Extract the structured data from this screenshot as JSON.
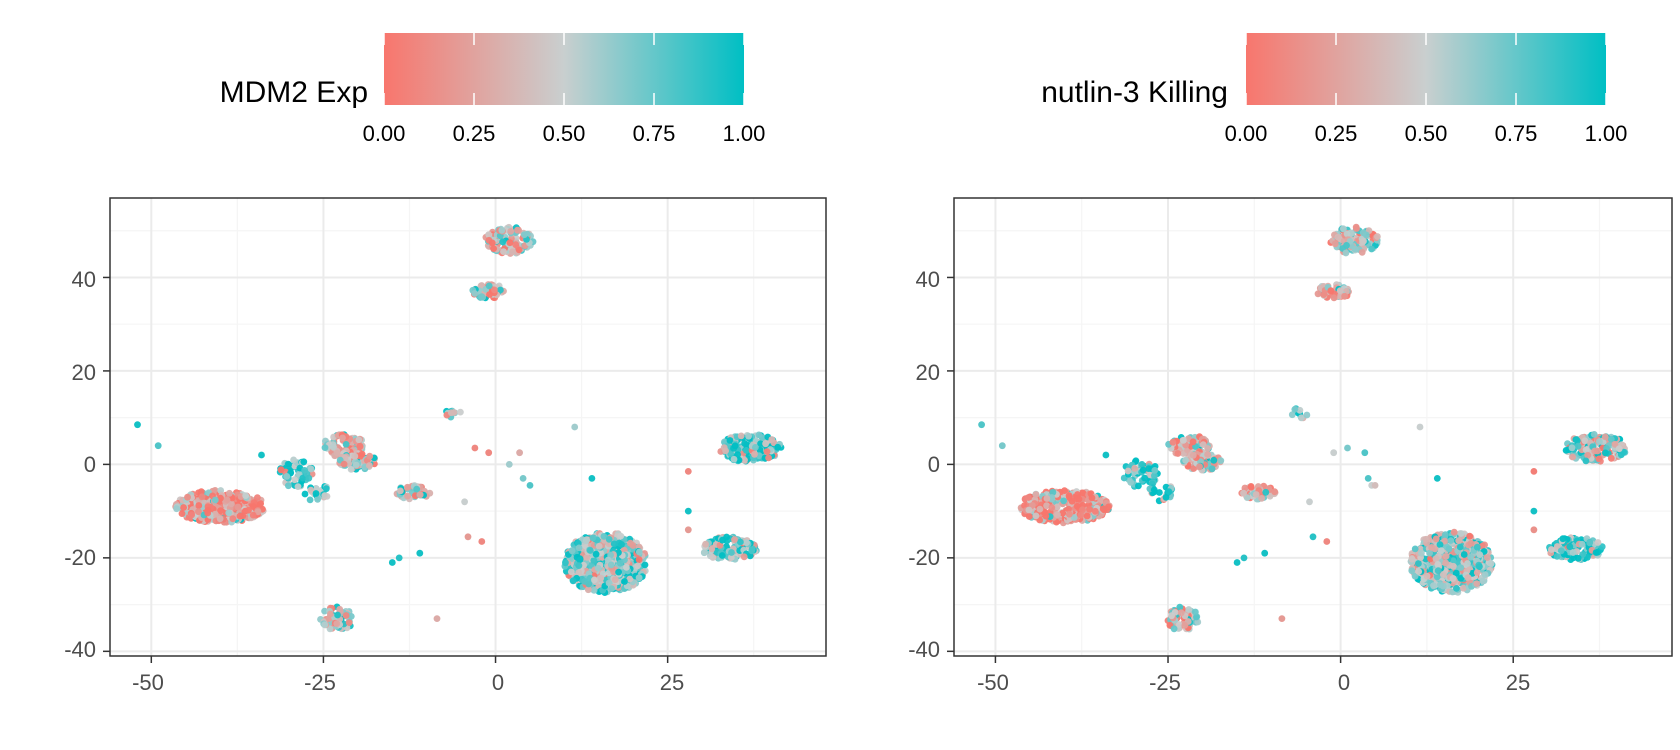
{
  "colors": {
    "low": "#f8766d",
    "mid": "#c9cfcf",
    "high": "#00bfc4",
    "panel_border": "#333333",
    "grid_major": "#ebebeb",
    "grid_minor": "#f5f5f5",
    "tick_label": "#4d4d4d"
  },
  "chart_data": [
    {
      "type": "scatter",
      "title": "",
      "xlabel": "",
      "ylabel": "",
      "xlim": [
        -56,
        48
      ],
      "ylim": [
        -41,
        57
      ],
      "x_ticks": [
        -50,
        -25,
        0,
        25
      ],
      "x_tick_labels": [
        "-50",
        "-25",
        "0",
        "25"
      ],
      "y_ticks": [
        -40,
        -20,
        0,
        20,
        40
      ],
      "y_tick_labels": [
        "-40",
        "-20",
        "0",
        "20",
        "40"
      ],
      "grid": true,
      "legend": {
        "position": "top",
        "title": "MDM2  Exp",
        "range": [
          0,
          1
        ],
        "ticks": [
          0,
          0.25,
          0.5,
          0.75,
          1
        ],
        "tick_labels": [
          "0.00",
          "0.25",
          "0.50",
          "0.75",
          "1.00"
        ]
      },
      "clusters": [
        {
          "cx": -40,
          "cy": -9,
          "rx": 6.5,
          "ry": 3.5,
          "n": 340,
          "mean": 0.22
        },
        {
          "cx": -22,
          "cy": 4,
          "rx": 3,
          "ry": 2.5,
          "n": 90,
          "mean": 0.35
        },
        {
          "cx": -20,
          "cy": 0.5,
          "rx": 2.8,
          "ry": 1.8,
          "n": 60,
          "mean": 0.5
        },
        {
          "cx": -29,
          "cy": -2,
          "rx": 2.5,
          "ry": 3,
          "n": 55,
          "mean": 0.8
        },
        {
          "cx": -26,
          "cy": -6,
          "rx": 1.8,
          "ry": 2,
          "n": 25,
          "mean": 0.7
        },
        {
          "cx": -12,
          "cy": -6,
          "rx": 2.5,
          "ry": 1.5,
          "n": 50,
          "mean": 0.45
        },
        {
          "cx": -23,
          "cy": -33,
          "rx": 2.5,
          "ry": 2.5,
          "n": 60,
          "mean": 0.55
        },
        {
          "cx": 2,
          "cy": 48,
          "rx": 3.5,
          "ry": 3,
          "n": 110,
          "mean": 0.45
        },
        {
          "cx": -1,
          "cy": 37,
          "rx": 2.5,
          "ry": 1.5,
          "n": 55,
          "mean": 0.4
        },
        {
          "cx": 16,
          "cy": -21,
          "rx": 6,
          "ry": 6.5,
          "n": 600,
          "mean": 0.65
        },
        {
          "cx": 37,
          "cy": 3.5,
          "rx": 4.5,
          "ry": 3,
          "n": 160,
          "mean": 0.72
        },
        {
          "cx": 34,
          "cy": -18,
          "rx": 4,
          "ry": 2.5,
          "n": 110,
          "mean": 0.68
        },
        {
          "cx": -6,
          "cy": 11,
          "rx": 1.2,
          "ry": 1.2,
          "n": 10,
          "mean": 0.6
        }
      ],
      "outliers": [
        {
          "x": -52,
          "y": 8.5,
          "v": 0.95
        },
        {
          "x": -49,
          "y": 4,
          "v": 0.8
        },
        {
          "x": -34,
          "y": 2,
          "v": 0.95
        },
        {
          "x": -3,
          "y": 3.5,
          "v": 0.1
        },
        {
          "x": -1,
          "y": 2.5,
          "v": 0.1
        },
        {
          "x": 2,
          "y": 0,
          "v": 0.6
        },
        {
          "x": 3.5,
          "y": 2.5,
          "v": 0.3
        },
        {
          "x": 4,
          "y": -3,
          "v": 0.7
        },
        {
          "x": 5,
          "y": -4.5,
          "v": 0.8
        },
        {
          "x": 11.5,
          "y": 8,
          "v": 0.6
        },
        {
          "x": 14,
          "y": -3,
          "v": 0.95
        },
        {
          "x": -4.5,
          "y": -8,
          "v": 0.5
        },
        {
          "x": -4,
          "y": -15.5,
          "v": 0.2
        },
        {
          "x": -2,
          "y": -16.5,
          "v": 0.1
        },
        {
          "x": -15,
          "y": -21,
          "v": 0.95
        },
        {
          "x": -14,
          "y": -20,
          "v": 0.9
        },
        {
          "x": -11,
          "y": -19,
          "v": 0.95
        },
        {
          "x": -8.5,
          "y": -33,
          "v": 0.3
        },
        {
          "x": 28,
          "y": -1.5,
          "v": 0.1
        },
        {
          "x": 28,
          "y": -10,
          "v": 0.95
        },
        {
          "x": 28,
          "y": -14,
          "v": 0.2
        }
      ]
    },
    {
      "type": "scatter",
      "title": "",
      "xlabel": "",
      "ylabel": "",
      "xlim": [
        -56,
        48
      ],
      "ylim": [
        -41,
        57
      ],
      "x_ticks": [
        -50,
        -25,
        0,
        25
      ],
      "x_tick_labels": [
        "-50",
        "-25",
        "0",
        "25"
      ],
      "y_ticks": [
        -40,
        -20,
        0,
        20,
        40
      ],
      "y_tick_labels": [
        "-40",
        "-20",
        "0",
        "20",
        "40"
      ],
      "grid": true,
      "legend": {
        "position": "top",
        "title": "nutlin-3 Killing",
        "range": [
          0,
          1
        ],
        "ticks": [
          0,
          0.25,
          0.5,
          0.75,
          1
        ],
        "tick_labels": [
          "0.00",
          "0.25",
          "0.50",
          "0.75",
          "1.00"
        ]
      },
      "clusters": [
        {
          "cx": -40,
          "cy": -9,
          "rx": 6.5,
          "ry": 3.5,
          "n": 340,
          "mean": 0.2
        },
        {
          "cx": -22,
          "cy": 4,
          "rx": 3,
          "ry": 2.5,
          "n": 90,
          "mean": 0.35
        },
        {
          "cx": -20,
          "cy": 0.5,
          "rx": 2.8,
          "ry": 1.8,
          "n": 60,
          "mean": 0.45
        },
        {
          "cx": -29,
          "cy": -2,
          "rx": 2.5,
          "ry": 3,
          "n": 55,
          "mean": 0.88
        },
        {
          "cx": -26,
          "cy": -6,
          "rx": 1.8,
          "ry": 2,
          "n": 25,
          "mean": 0.85
        },
        {
          "cx": -12,
          "cy": -6,
          "rx": 2.5,
          "ry": 1.5,
          "n": 50,
          "mean": 0.4
        },
        {
          "cx": -23,
          "cy": -33,
          "rx": 2.5,
          "ry": 2.5,
          "n": 60,
          "mean": 0.5
        },
        {
          "cx": 2,
          "cy": 48,
          "rx": 3.5,
          "ry": 3,
          "n": 110,
          "mean": 0.45
        },
        {
          "cx": -1,
          "cy": 37,
          "rx": 2.5,
          "ry": 1.5,
          "n": 55,
          "mean": 0.45
        },
        {
          "cx": 16,
          "cy": -21,
          "rx": 6,
          "ry": 6.5,
          "n": 600,
          "mean": 0.58
        },
        {
          "cx": 37,
          "cy": 3.5,
          "rx": 4.5,
          "ry": 3,
          "n": 160,
          "mean": 0.6
        },
        {
          "cx": 34,
          "cy": -18,
          "rx": 4,
          "ry": 2.5,
          "n": 110,
          "mean": 0.8
        },
        {
          "cx": -6,
          "cy": 11,
          "rx": 1.2,
          "ry": 1.2,
          "n": 10,
          "mean": 0.75
        }
      ],
      "outliers": [
        {
          "x": -52,
          "y": 8.5,
          "v": 0.8
        },
        {
          "x": -49,
          "y": 4,
          "v": 0.7
        },
        {
          "x": -34,
          "y": 2,
          "v": 0.95
        },
        {
          "x": 3.5,
          "y": 2.5,
          "v": 0.8
        },
        {
          "x": 4,
          "y": -3,
          "v": 0.8
        },
        {
          "x": 4.5,
          "y": -4.5,
          "v": 0.5
        },
        {
          "x": 5,
          "y": -4.5,
          "v": 0.4
        },
        {
          "x": 1,
          "y": 3.5,
          "v": 0.7
        },
        {
          "x": -1,
          "y": 2.5,
          "v": 0.5
        },
        {
          "x": 11.5,
          "y": 8,
          "v": 0.5
        },
        {
          "x": 14,
          "y": -3,
          "v": 0.95
        },
        {
          "x": -4.5,
          "y": -8,
          "v": 0.5
        },
        {
          "x": -4,
          "y": -15.5,
          "v": 0.9
        },
        {
          "x": -2,
          "y": -16.5,
          "v": 0.1
        },
        {
          "x": -15,
          "y": -21,
          "v": 0.95
        },
        {
          "x": -14,
          "y": -20,
          "v": 0.9
        },
        {
          "x": -11,
          "y": -19,
          "v": 0.95
        },
        {
          "x": -8.5,
          "y": -33,
          "v": 0.2
        },
        {
          "x": 28,
          "y": -1.5,
          "v": 0.05
        },
        {
          "x": 28,
          "y": -10,
          "v": 0.95
        },
        {
          "x": 28,
          "y": -14,
          "v": 0.15
        }
      ]
    }
  ]
}
